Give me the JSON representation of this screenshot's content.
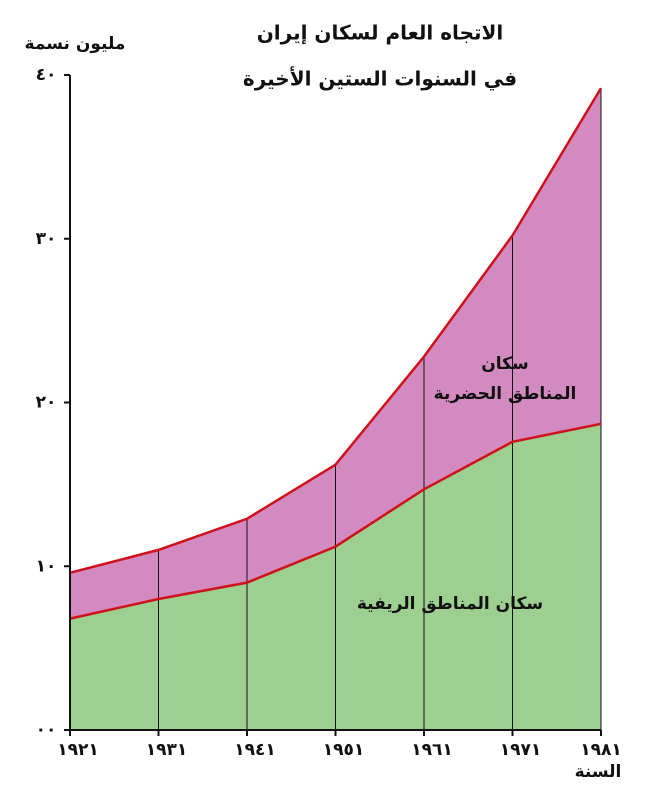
{
  "chart_data": {
    "type": "stacked-area",
    "title": [
      "الاتجاه العام لسكان إيران",
      "في السنوات الستين الأخيرة"
    ],
    "y_label": "مليون نسمة",
    "x_label": "السنة",
    "categories": [
      "١٩٢١",
      "١٩٣١",
      "١٩٤١",
      "١٩٥١",
      "١٩٦١",
      "١٩٧١",
      "١٩٨١"
    ],
    "series": [
      {
        "name": "سكان المناطق الريفية",
        "color": "#9ccf90",
        "values": [
          6.8,
          8.0,
          9.0,
          11.2,
          14.7,
          17.6,
          18.7
        ]
      },
      {
        "name": [
          "سكان",
          "المناطق الحضرية"
        ],
        "color": "#d38ac0",
        "values": [
          2.8,
          3.0,
          3.9,
          5.0,
          8.1,
          12.6,
          20.5
        ]
      }
    ],
    "line_color": "#d0101a",
    "ylim": [
      0,
      40
    ],
    "yticks": [
      {
        "value": 0,
        "label": "٠٠"
      },
      {
        "value": 10,
        "label": "١٠"
      },
      {
        "value": 20,
        "label": "٢٠"
      },
      {
        "value": 30,
        "label": "٣٠"
      },
      {
        "value": 40,
        "label": "٤٠"
      }
    ]
  }
}
